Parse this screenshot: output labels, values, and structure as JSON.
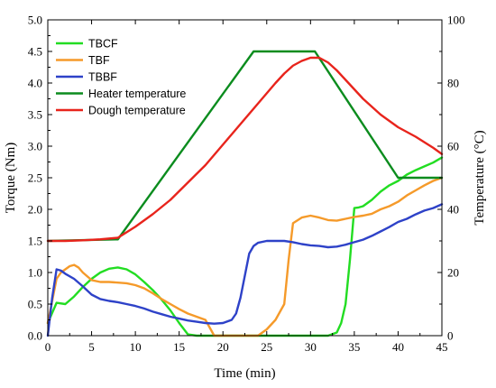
{
  "chart_data": {
    "type": "line",
    "xlabel": "Time (min)",
    "ylabel_left": "Torque (Nm)",
    "ylabel_right": "Temperature (°C)",
    "xlim": [
      0,
      45
    ],
    "ylim_left": [
      0,
      5
    ],
    "ylim_right": [
      0,
      100
    ],
    "x_ticks": [
      "0",
      "5",
      "10",
      "15",
      "20",
      "25",
      "30",
      "35",
      "40",
      "45"
    ],
    "y_left_ticks": [
      "0.0",
      "0.5",
      "1.0",
      "1.5",
      "2.0",
      "2.5",
      "3.0",
      "3.5",
      "4.0",
      "4.5",
      "5.0"
    ],
    "y_right_ticks": [
      "0",
      "20",
      "40",
      "60",
      "80",
      "100"
    ],
    "grid": false,
    "legend_position": "top-left",
    "series": [
      {
        "name": "TBCF",
        "axis": "left",
        "color": "#22dd22",
        "x": [
          0,
          1,
          2,
          3,
          4,
          5,
          6,
          7,
          8,
          9,
          10,
          11,
          12,
          13,
          14,
          15,
          16,
          17,
          18,
          20,
          22,
          24,
          26,
          28,
          30,
          32,
          33,
          33.5,
          34,
          34.5,
          35,
          35.5,
          36,
          37,
          38,
          39,
          40,
          41,
          42,
          43,
          44,
          45
        ],
        "y": [
          0.2,
          0.52,
          0.5,
          0.62,
          0.77,
          0.9,
          1.0,
          1.06,
          1.08,
          1.05,
          0.97,
          0.85,
          0.72,
          0.57,
          0.4,
          0.2,
          0.02,
          0.0,
          0.0,
          0.0,
          0.0,
          0.0,
          0.0,
          0.0,
          0.0,
          0.0,
          0.05,
          0.2,
          0.5,
          1.2,
          2.02,
          2.03,
          2.05,
          2.15,
          2.28,
          2.38,
          2.45,
          2.55,
          2.62,
          2.68,
          2.74,
          2.82
        ]
      },
      {
        "name": "TBF",
        "axis": "left",
        "color": "#f59a2a",
        "x": [
          0,
          0.5,
          1,
          1.5,
          2,
          2.5,
          3,
          3.5,
          4,
          5,
          6,
          7,
          8,
          9,
          10,
          11,
          12,
          13,
          14,
          15,
          16,
          17,
          18,
          19,
          20,
          21,
          22,
          23,
          24,
          25,
          26,
          27,
          27.5,
          28,
          29,
          30,
          31,
          32,
          33,
          34,
          35,
          36,
          37,
          38,
          39,
          40,
          41,
          42,
          43,
          44,
          45
        ],
        "y": [
          0.2,
          0.55,
          0.9,
          1.0,
          1.05,
          1.1,
          1.12,
          1.08,
          1.0,
          0.88,
          0.85,
          0.85,
          0.84,
          0.83,
          0.8,
          0.75,
          0.67,
          0.58,
          0.5,
          0.42,
          0.35,
          0.3,
          0.25,
          0.0,
          0.0,
          0.0,
          0.0,
          0.0,
          0.0,
          0.1,
          0.25,
          0.5,
          1.2,
          1.78,
          1.87,
          1.9,
          1.87,
          1.83,
          1.82,
          1.85,
          1.88,
          1.9,
          1.93,
          2.0,
          2.05,
          2.12,
          2.22,
          2.3,
          2.38,
          2.45,
          2.5
        ]
      },
      {
        "name": "TBBF",
        "axis": "left",
        "color": "#2e42c8",
        "x": [
          0,
          0.5,
          1,
          1.5,
          2,
          3,
          4,
          5,
          6,
          7,
          8,
          9,
          10,
          11,
          12,
          13,
          14,
          15,
          16,
          17,
          18,
          19,
          20,
          21,
          21.5,
          22,
          22.5,
          23,
          23.5,
          24,
          25,
          26,
          27,
          28,
          29,
          30,
          31,
          32,
          33,
          34,
          35,
          36,
          37,
          38,
          39,
          40,
          41,
          42,
          43,
          44,
          45
        ],
        "y": [
          0.0,
          0.6,
          1.05,
          1.03,
          0.98,
          0.9,
          0.78,
          0.65,
          0.58,
          0.55,
          0.53,
          0.5,
          0.47,
          0.43,
          0.38,
          0.34,
          0.3,
          0.27,
          0.24,
          0.22,
          0.2,
          0.19,
          0.2,
          0.25,
          0.35,
          0.6,
          0.95,
          1.3,
          1.42,
          1.47,
          1.5,
          1.5,
          1.5,
          1.48,
          1.45,
          1.43,
          1.42,
          1.4,
          1.41,
          1.44,
          1.48,
          1.52,
          1.58,
          1.65,
          1.72,
          1.8,
          1.85,
          1.92,
          1.98,
          2.02,
          2.08
        ]
      },
      {
        "name": "Heater temperature",
        "axis": "right",
        "color": "#0b8c1e",
        "x": [
          0,
          8,
          23.5,
          30.5,
          40,
          45
        ],
        "y": [
          30,
          30.5,
          90,
          90,
          50,
          50
        ]
      },
      {
        "name": "Dough temperature",
        "axis": "right",
        "color": "#e8241c",
        "x": [
          0,
          2,
          4,
          6,
          8,
          10,
          12,
          14,
          16,
          18,
          20,
          22,
          24,
          26,
          27,
          28,
          29,
          30,
          31,
          32,
          33,
          34,
          36,
          38,
          40,
          42,
          44,
          45
        ],
        "y": [
          30,
          30,
          30.2,
          30.5,
          31,
          34.5,
          38.5,
          43,
          48.5,
          54,
          60.5,
          67,
          73.5,
          80,
          83,
          85.5,
          87,
          88,
          88,
          86.5,
          84,
          81,
          75,
          70,
          66,
          63,
          59.5,
          57.5
        ]
      }
    ]
  }
}
